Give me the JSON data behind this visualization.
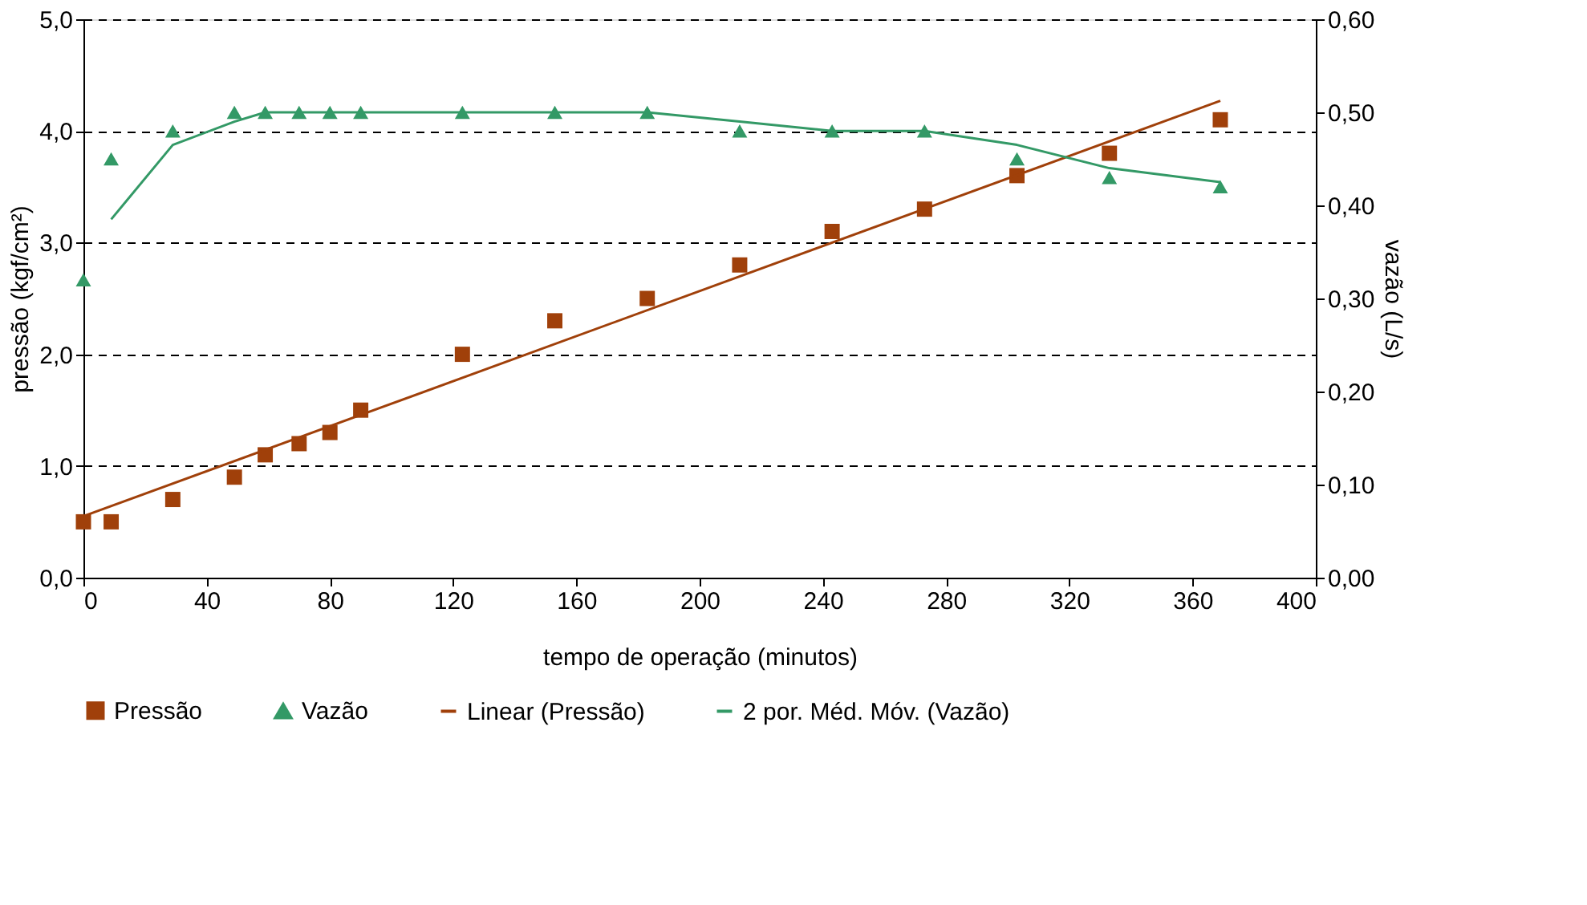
{
  "chart_data": {
    "type": "scatter",
    "xlabel": "tempo de operação (minutos)",
    "ylabel": "pressão (kgf/cm²)",
    "y2label": "vazão (L/s)",
    "xlim": [
      0,
      400
    ],
    "xticks": [
      0,
      40,
      80,
      120,
      160,
      200,
      240,
      280,
      320,
      360,
      400
    ],
    "ylim": [
      0,
      5
    ],
    "yticks": [
      {
        "value": 0,
        "label": "0,0"
      },
      {
        "value": 1,
        "label": "1,0"
      },
      {
        "value": 2,
        "label": "2,0"
      },
      {
        "value": 3,
        "label": "3,0"
      },
      {
        "value": 4,
        "label": "4,0"
      },
      {
        "value": 5,
        "label": "5,0"
      }
    ],
    "y2lim": [
      0,
      0.6
    ],
    "y2ticks": [
      {
        "value": 0,
        "label": "0,00"
      },
      {
        "value": 0.1,
        "label": "0,10"
      },
      {
        "value": 0.2,
        "label": "0,20"
      },
      {
        "value": 0.3,
        "label": "0,30"
      },
      {
        "value": 0.4,
        "label": "0,40"
      },
      {
        "value": 0.5,
        "label": "0,50"
      },
      {
        "value": 0.6,
        "label": "0,60"
      }
    ],
    "grid": "y",
    "legend": "bottom",
    "series": [
      {
        "name": "Pressão",
        "marker": "square",
        "color": "#a0400a",
        "x": [
          0,
          9,
          29,
          49,
          59,
          70,
          80,
          90,
          123,
          153,
          183,
          213,
          243,
          273,
          303,
          333,
          369
        ],
        "values": [
          0.5,
          0.5,
          0.7,
          0.9,
          1.1,
          1.2,
          1.3,
          1.5,
          2.0,
          2.3,
          2.5,
          2.8,
          3.1,
          3.3,
          3.6,
          3.8,
          4.1
        ]
      },
      {
        "name": "Vazão",
        "marker": "triangle",
        "color": "#339966",
        "axis": "y2",
        "x": [
          0,
          9,
          29,
          49,
          59,
          70,
          80,
          90,
          123,
          153,
          183,
          213,
          243,
          273,
          303,
          333,
          369
        ],
        "values": [
          0.32,
          0.45,
          0.48,
          0.5,
          0.5,
          0.5,
          0.5,
          0.5,
          0.5,
          0.5,
          0.5,
          0.48,
          0.48,
          0.48,
          0.45,
          0.43,
          0.42
        ]
      },
      {
        "name": "Linear (Pressão)",
        "type": "line",
        "marker": "none",
        "color": "#a0400a",
        "x": [
          0,
          369
        ],
        "values": [
          0.55,
          4.27
        ]
      },
      {
        "name": "2 por. Méd. Móv. (Vazão)",
        "type": "line",
        "marker": "none",
        "color": "#339966",
        "axis": "y2",
        "x": [
          9,
          29,
          49,
          59,
          70,
          80,
          90,
          123,
          153,
          183,
          213,
          243,
          273,
          303,
          333,
          369
        ],
        "values": [
          0.385,
          0.465,
          0.49,
          0.5,
          0.5,
          0.5,
          0.5,
          0.5,
          0.5,
          0.5,
          0.49,
          0.48,
          0.48,
          0.465,
          0.44,
          0.425
        ]
      }
    ]
  }
}
